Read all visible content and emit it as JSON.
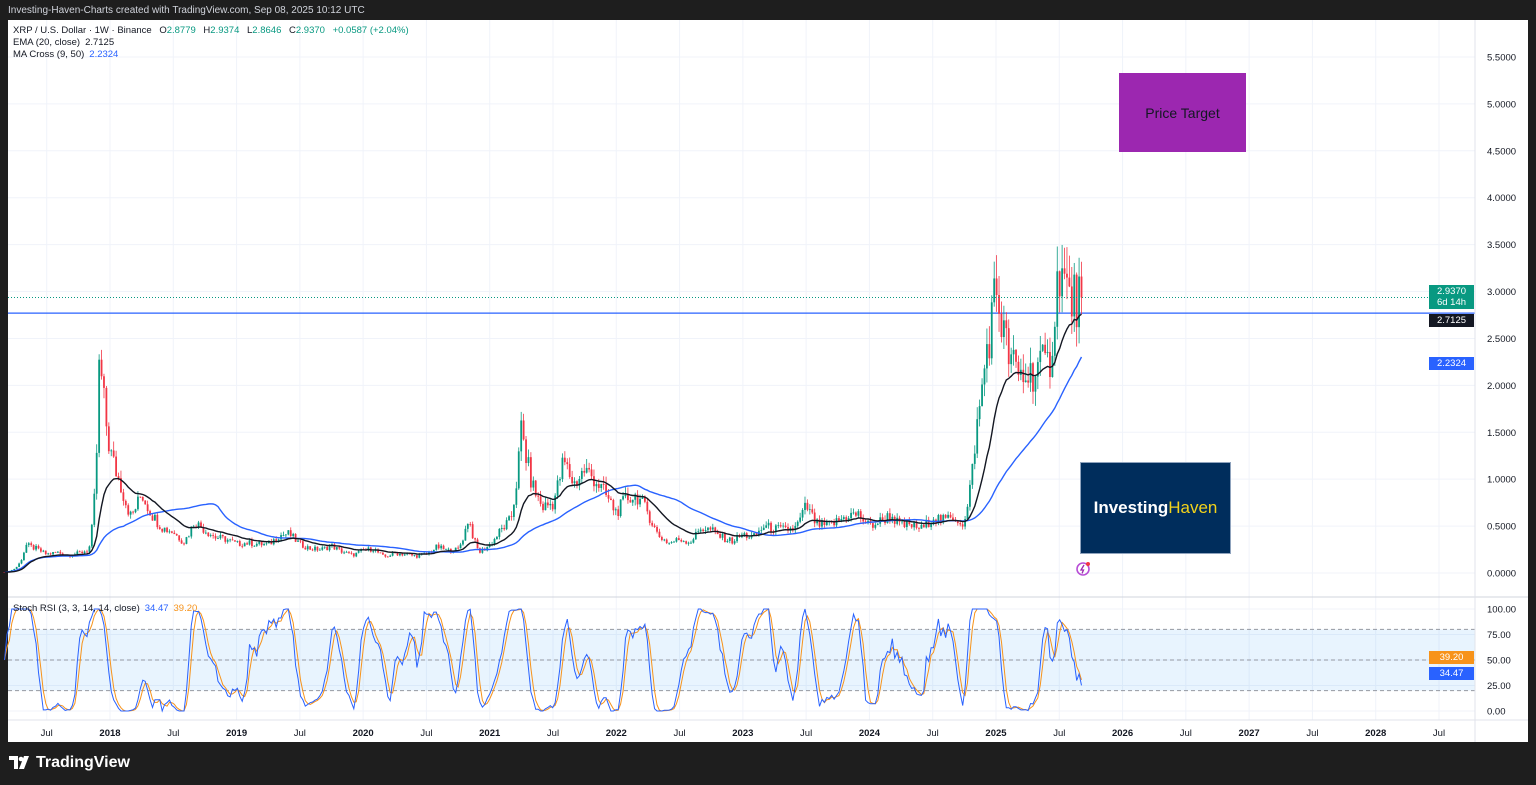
{
  "attribution": "Investing-Haven-Charts created with TradingView.com, Sep 08, 2025 10:12 UTC",
  "legend": {
    "symbol": "XRP / U.S. Dollar · 1W · Binance",
    "open_label": "O",
    "open": "2.8779",
    "high_label": "H",
    "high": "2.9374",
    "low_label": "L",
    "low": "2.8646",
    "close_label": "C",
    "close": "2.9370",
    "change": "+0.0587 (+2.04%)",
    "ema_label": "EMA (20, close)",
    "ema_value": "2.7125",
    "ma_label": "MA Cross (9, 50)",
    "ma_value": "2.2324",
    "stoch_label": "Stoch RSI (3, 3, 14, 14, close)",
    "stoch_k": "34.47",
    "stoch_d": "39.20"
  },
  "badges": {
    "price": "2.9370",
    "countdown": "6d 14h",
    "ema": "2.7125",
    "ma": "2.2324",
    "stoch_d": "39.20",
    "stoch_k": "34.47"
  },
  "annotations": {
    "price_target": "Price Target",
    "logo_part1": "Investing",
    "logo_part2": "Haven",
    "horizontal_line_level": 2.77
  },
  "brand": "TradingView",
  "colors": {
    "up": "#089981",
    "down": "#f23645",
    "ema": "#131722",
    "ma": "#2962ff",
    "stoch_k": "#2962ff",
    "stoch_d": "#f7931a",
    "price_target": "#9c27b0",
    "logo_bg": "#002d5c"
  },
  "chart_data": {
    "type": "candlestick",
    "interval": "1W",
    "price_axis": {
      "range": [
        0,
        5.5
      ],
      "ticks": [
        "0.0000",
        "0.5000",
        "1.0000",
        "1.5000",
        "2.0000",
        "2.5000",
        "3.0000",
        "3.5000",
        "4.0000",
        "4.5000",
        "5.0000",
        "5.5000"
      ]
    },
    "stoch_axis": {
      "range": [
        0,
        100
      ],
      "ticks": [
        "0.00",
        "25.00",
        "50.00",
        "75.00",
        "100.00"
      ],
      "bands": [
        20,
        50,
        80
      ]
    },
    "time_axis": {
      "ticks": [
        {
          "label": "Jul",
          "date": 2017.5
        },
        {
          "label": "2018",
          "date": 2018
        },
        {
          "label": "Jul",
          "date": 2018.5
        },
        {
          "label": "2019",
          "date": 2019
        },
        {
          "label": "Jul",
          "date": 2019.5
        },
        {
          "label": "2020",
          "date": 2020
        },
        {
          "label": "Jul",
          "date": 2020.5
        },
        {
          "label": "2021",
          "date": 2021
        },
        {
          "label": "Jul",
          "date": 2021.5
        },
        {
          "label": "2022",
          "date": 2022
        },
        {
          "label": "Jul",
          "date": 2022.5
        },
        {
          "label": "2023",
          "date": 2023
        },
        {
          "label": "Jul",
          "date": 2023.5
        },
        {
          "label": "2024",
          "date": 2024
        },
        {
          "label": "Jul",
          "date": 2024.5
        },
        {
          "label": "2025",
          "date": 2025
        },
        {
          "label": "Jul",
          "date": 2025.5
        },
        {
          "label": "2026",
          "date": 2026
        },
        {
          "label": "Jul",
          "date": 2026.5
        },
        {
          "label": "2027",
          "date": 2027
        },
        {
          "label": "Jul",
          "date": 2027.5
        },
        {
          "label": "2028",
          "date": 2028
        },
        {
          "label": "Jul",
          "date": 2028.5
        }
      ]
    },
    "approx_monthly_close": [
      [
        "2017-03",
        0.01
      ],
      [
        "2017-04",
        0.05
      ],
      [
        "2017-05",
        0.3
      ],
      [
        "2017-06",
        0.26
      ],
      [
        "2017-07",
        0.2
      ],
      [
        "2017-08",
        0.22
      ],
      [
        "2017-09",
        0.19
      ],
      [
        "2017-10",
        0.21
      ],
      [
        "2017-11",
        0.25
      ],
      [
        "2017-12",
        2.3
      ],
      [
        "2018-01",
        1.3
      ],
      [
        "2018-02",
        0.95
      ],
      [
        "2018-03",
        0.6
      ],
      [
        "2018-04",
        0.85
      ],
      [
        "2018-05",
        0.62
      ],
      [
        "2018-06",
        0.48
      ],
      [
        "2018-07",
        0.44
      ],
      [
        "2018-08",
        0.33
      ],
      [
        "2018-09",
        0.55
      ],
      [
        "2018-10",
        0.46
      ],
      [
        "2018-11",
        0.38
      ],
      [
        "2018-12",
        0.36
      ],
      [
        "2019-01",
        0.31
      ],
      [
        "2019-02",
        0.32
      ],
      [
        "2019-03",
        0.31
      ],
      [
        "2019-04",
        0.3
      ],
      [
        "2019-05",
        0.4
      ],
      [
        "2019-06",
        0.42
      ],
      [
        "2019-07",
        0.31
      ],
      [
        "2019-08",
        0.26
      ],
      [
        "2019-09",
        0.25
      ],
      [
        "2019-10",
        0.29
      ],
      [
        "2019-11",
        0.23
      ],
      [
        "2019-12",
        0.19
      ],
      [
        "2020-01",
        0.24
      ],
      [
        "2020-02",
        0.26
      ],
      [
        "2020-03",
        0.17
      ],
      [
        "2020-04",
        0.21
      ],
      [
        "2020-05",
        0.2
      ],
      [
        "2020-06",
        0.18
      ],
      [
        "2020-07",
        0.2
      ],
      [
        "2020-08",
        0.28
      ],
      [
        "2020-09",
        0.24
      ],
      [
        "2020-10",
        0.25
      ],
      [
        "2020-11",
        0.6
      ],
      [
        "2020-12",
        0.22
      ],
      [
        "2021-01",
        0.3
      ],
      [
        "2021-02",
        0.45
      ],
      [
        "2021-03",
        0.57
      ],
      [
        "2021-04",
        1.55
      ],
      [
        "2021-05",
        0.95
      ],
      [
        "2021-06",
        0.7
      ],
      [
        "2021-07",
        0.75
      ],
      [
        "2021-08",
        1.2
      ],
      [
        "2021-09",
        0.95
      ],
      [
        "2021-10",
        1.1
      ],
      [
        "2021-11",
        1.0
      ],
      [
        "2021-12",
        0.83
      ],
      [
        "2022-01",
        0.65
      ],
      [
        "2022-02",
        0.8
      ],
      [
        "2022-03",
        0.82
      ],
      [
        "2022-04",
        0.65
      ],
      [
        "2022-05",
        0.4
      ],
      [
        "2022-06",
        0.32
      ],
      [
        "2022-07",
        0.36
      ],
      [
        "2022-08",
        0.33
      ],
      [
        "2022-09",
        0.48
      ],
      [
        "2022-10",
        0.46
      ],
      [
        "2022-11",
        0.38
      ],
      [
        "2022-12",
        0.34
      ],
      [
        "2023-01",
        0.41
      ],
      [
        "2023-02",
        0.38
      ],
      [
        "2023-03",
        0.5
      ],
      [
        "2023-04",
        0.47
      ],
      [
        "2023-05",
        0.46
      ],
      [
        "2023-06",
        0.48
      ],
      [
        "2023-07",
        0.72
      ],
      [
        "2023-08",
        0.52
      ],
      [
        "2023-09",
        0.5
      ],
      [
        "2023-10",
        0.55
      ],
      [
        "2023-11",
        0.62
      ],
      [
        "2023-12",
        0.62
      ],
      [
        "2024-01",
        0.5
      ],
      [
        "2024-02",
        0.55
      ],
      [
        "2024-03",
        0.62
      ],
      [
        "2024-04",
        0.5
      ],
      [
        "2024-05",
        0.51
      ],
      [
        "2024-06",
        0.47
      ],
      [
        "2024-07",
        0.6
      ],
      [
        "2024-08",
        0.56
      ],
      [
        "2024-09",
        0.6
      ],
      [
        "2024-10",
        0.52
      ],
      [
        "2024-11",
        1.4
      ],
      [
        "2024-12",
        2.3
      ],
      [
        "2025-01",
        3.05
      ],
      [
        "2025-02",
        2.4
      ],
      [
        "2025-03",
        2.1
      ],
      [
        "2025-04",
        2.1
      ],
      [
        "2025-05",
        2.2
      ],
      [
        "2025-06",
        2.2
      ],
      [
        "2025-07",
        3.3
      ],
      [
        "2025-08",
        2.9
      ],
      [
        "2025-09",
        2.937
      ]
    ]
  }
}
